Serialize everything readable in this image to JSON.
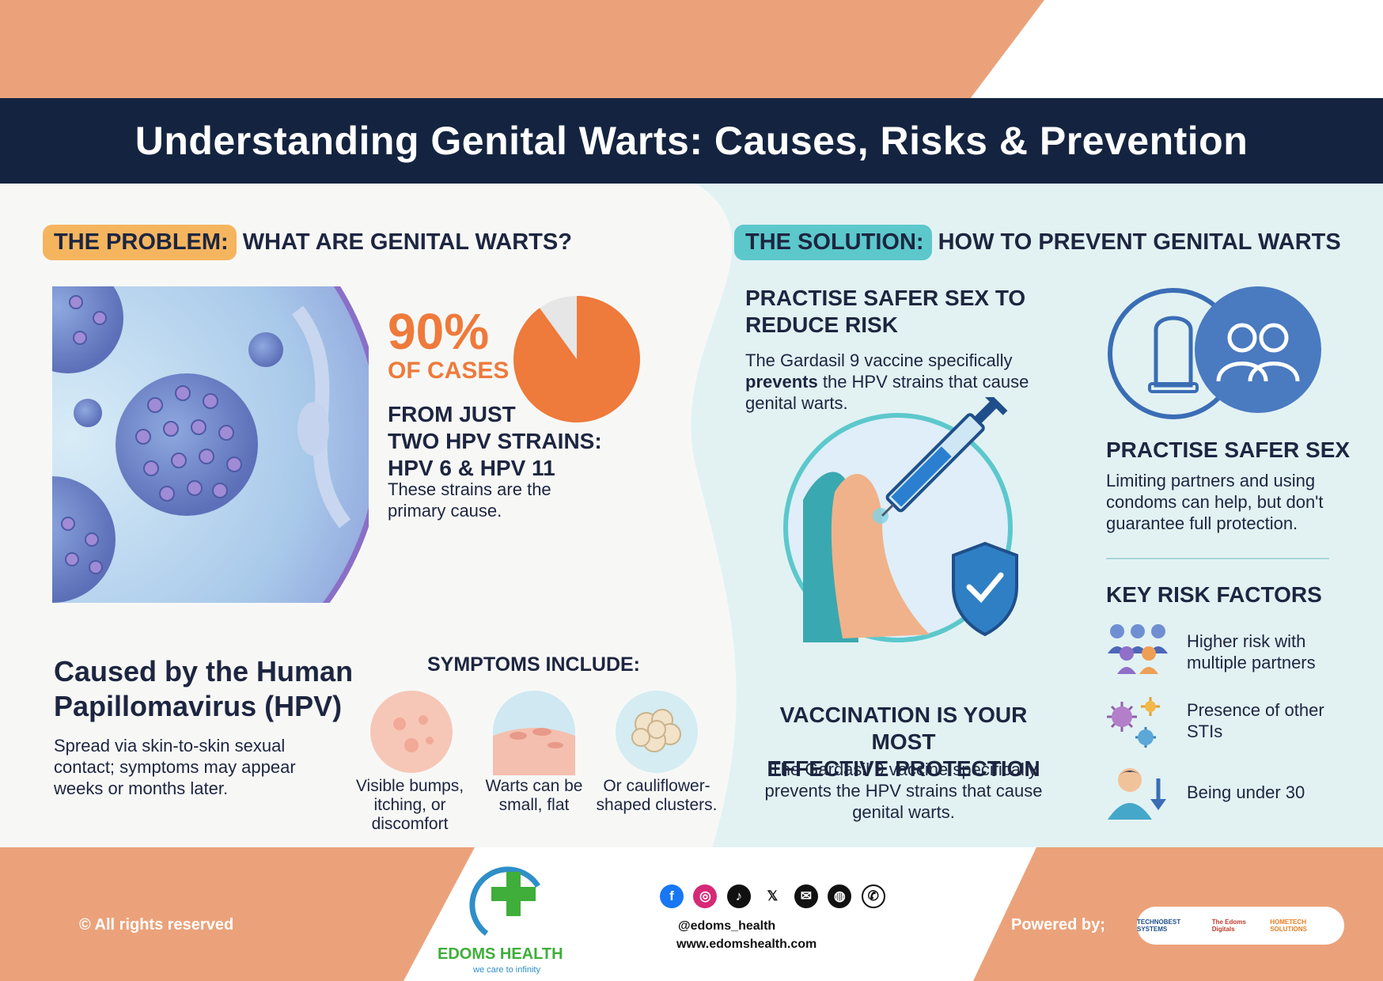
{
  "title": "Understanding Genital Warts: Causes, Risks & Prevention",
  "problem": {
    "tag": "THE PROBLEM:",
    "heading": "WHAT ARE GENITAL WARTS?",
    "stat_value": "90%",
    "stat_label": "OF CASES",
    "stat_fraction": 0.9,
    "strains_line1": "FROM JUST",
    "strains_line2": "TWO HPV STRAINS:",
    "strains_line3": "HPV 6 & HPV 11",
    "strains_desc": "These strains are the primary cause.",
    "cause_title_line1": "Caused by the Human",
    "cause_title_line2": "Papillomavirus (HPV)",
    "cause_desc": "Spread via skin-to-skin sexual contact; symptoms may appear weeks or months later.",
    "symptoms_heading": "SYMPTOMS INCLUDE:",
    "symptoms": [
      {
        "caption": "Visible bumps, itching, or discomfort"
      },
      {
        "caption": "Warts can be small, flat"
      },
      {
        "caption": "Or cauliflower-shaped clusters."
      }
    ]
  },
  "solution": {
    "tag": "THE SOLUTION:",
    "heading": "HOW TO PREVENT GENITAL WARTS",
    "safer_title_line1": "PRACTISE SAFER SEX TO",
    "safer_title_line2": "REDUCE RISK",
    "vaccine_desc_pre": "The Gardasil 9 vaccine specifically",
    "vaccine_desc_bold": "prevents",
    "vaccine_desc_post": "the HPV strains that cause genital warts.",
    "vacc_title_line1": "VACCINATION IS YOUR MOST",
    "vacc_title_line2": "EFFECTIVE PROTECTION",
    "vacc_desc": "The Gardasil 9 vaccine specifically prevents the HPV strains that cause genital warts.",
    "practise_title": "PRACTISE SAFER SEX",
    "practise_desc": "Limiting partners and using condoms can help, but don't guarantee full protection.",
    "risk_heading": "KEY RISK FACTORS",
    "risks": [
      {
        "text": "Higher risk with multiple partners",
        "icon": "group-icon"
      },
      {
        "text": "Presence of other STIs",
        "icon": "virus-icon"
      },
      {
        "text": "Being under 30",
        "icon": "person-down-icon"
      }
    ]
  },
  "footer": {
    "copyright": "© All rights reserved",
    "brand": "EDOMS HEALTH",
    "tagline": "we care to infinity",
    "handle": "@edoms_health",
    "website": "www.edomshealth.com",
    "powered": "Powered by;",
    "sponsors": [
      "TECHNOBEST SYSTEMS",
      "The Edoms Digitals",
      "HOMETECH SOLUTIONS"
    ],
    "socials": [
      "facebook-icon",
      "instagram-icon",
      "tiktok-icon",
      "x-icon",
      "mail-icon",
      "web-icon",
      "whatsapp-icon"
    ]
  },
  "colors": {
    "navy": "#142440",
    "peach": "#eba27a",
    "orange": "#ee7a3b",
    "teal": "#5cc8cc",
    "green": "#3fae3a"
  }
}
